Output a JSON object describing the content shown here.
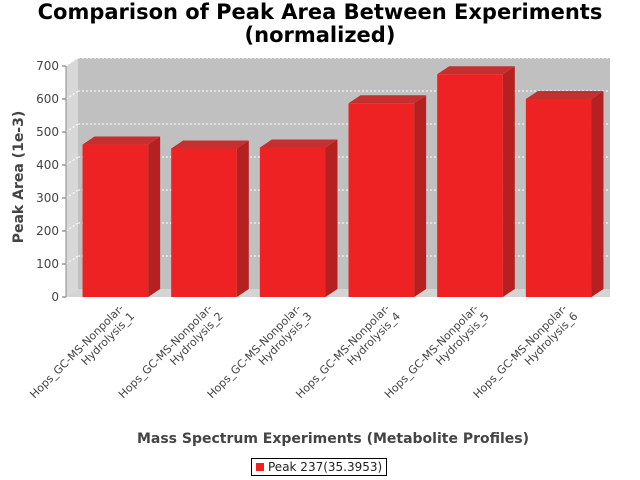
{
  "chart_data": {
    "type": "bar",
    "title": "Comparison of Peak Area Between Experiments\n(normalized)",
    "title_lines": [
      "Comparison of Peak Area Between Experiments",
      "(normalized)"
    ],
    "xlabel": "Mass Spectrum Experiments (Metabolite Profiles)",
    "ylabel": "Peak Area (1e-3)",
    "ylim": [
      0,
      700
    ],
    "yticks": [
      0,
      100,
      200,
      300,
      400,
      500,
      600,
      700
    ],
    "grid": true,
    "legend_position": "bottom",
    "categories": [
      [
        "Hops_GC-MS-Nonpolar-",
        "Hydrolysis_1"
      ],
      [
        "Hops_GC-MS-Nonpolar-",
        "Hydrolysis_2"
      ],
      [
        "Hops_GC-MS-Nonpolar-",
        "Hydrolysis_3"
      ],
      [
        "Hops_GC-MS-Nonpolar-",
        "Hydrolysis_4"
      ],
      [
        "Hops_GC-MS-Nonpolar-",
        "Hydrolysis_5"
      ],
      [
        "Hops_GC-MS-Nonpolar-",
        "Hydrolysis_6"
      ]
    ],
    "series": [
      {
        "name": "Peak 237(35.3953)",
        "color": "#ee2222",
        "values": [
          462,
          450,
          453,
          587,
          675,
          600
        ]
      }
    ]
  }
}
